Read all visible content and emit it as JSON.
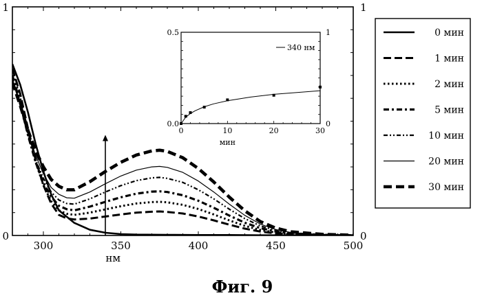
{
  "caption": "Фиг. 9",
  "chart_data": [
    {
      "type": "line",
      "title": "",
      "xlabel": "нм",
      "ylabel": "",
      "xlim": [
        280,
        500
      ],
      "ylim": [
        0,
        1
      ],
      "y2lim": [
        0,
        1
      ],
      "grid": false,
      "legend_position": "outside-right",
      "x_ticks": [
        300,
        350,
        400,
        450,
        500
      ],
      "y_ticks_left": [
        0,
        1
      ],
      "y_ticks_right": [
        0,
        1
      ],
      "x_tick_labels": [
        "300",
        "350",
        "400",
        "450",
        "500"
      ],
      "y_tick_labels_left": [
        "0",
        "1"
      ],
      "y_tick_labels_right": [
        "0",
        "1"
      ],
      "annotation": {
        "type": "arrow",
        "x": 340,
        "y_from": 0,
        "y_to": 0.44,
        "direction": "up"
      },
      "series": [
        {
          "name": "0 мин",
          "style": "solid-thick",
          "x": [
            280,
            285,
            290,
            295,
            300,
            305,
            310,
            320,
            330,
            340,
            350,
            360,
            380,
            400,
            420,
            440,
            460,
            480,
            500
          ],
          "y": [
            0.75,
            0.66,
            0.54,
            0.4,
            0.28,
            0.18,
            0.11,
            0.055,
            0.025,
            0.012,
            0.006,
            0.004,
            0.003,
            0.002,
            0.002,
            0.001,
            0.001,
            0.001,
            0.001
          ]
        },
        {
          "name": "1 мин",
          "style": "dash-thick",
          "x": [
            280,
            285,
            290,
            295,
            300,
            305,
            310,
            315,
            320,
            330,
            340,
            350,
            360,
            370,
            375,
            380,
            390,
            400,
            410,
            420,
            430,
            440,
            450,
            460,
            480,
            500
          ],
          "y": [
            0.73,
            0.62,
            0.47,
            0.33,
            0.22,
            0.14,
            0.09,
            0.075,
            0.07,
            0.074,
            0.083,
            0.092,
            0.1,
            0.104,
            0.105,
            0.103,
            0.096,
            0.083,
            0.066,
            0.047,
            0.03,
            0.017,
            0.009,
            0.005,
            0.002,
            0.001
          ]
        },
        {
          "name": "2 мин",
          "style": "dot-thick",
          "x": [
            280,
            285,
            290,
            295,
            300,
            305,
            310,
            315,
            320,
            330,
            340,
            350,
            360,
            370,
            375,
            380,
            390,
            400,
            410,
            420,
            430,
            440,
            450,
            460,
            480,
            500
          ],
          "y": [
            0.72,
            0.6,
            0.45,
            0.32,
            0.22,
            0.15,
            0.11,
            0.095,
            0.09,
            0.1,
            0.114,
            0.128,
            0.14,
            0.146,
            0.147,
            0.145,
            0.134,
            0.116,
            0.092,
            0.066,
            0.042,
            0.024,
            0.013,
            0.007,
            0.003,
            0.001
          ]
        },
        {
          "name": "5 мин",
          "style": "dashdot-thick",
          "x": [
            280,
            285,
            290,
            295,
            300,
            305,
            310,
            315,
            320,
            330,
            340,
            350,
            360,
            370,
            375,
            380,
            390,
            400,
            410,
            420,
            430,
            440,
            450,
            460,
            480,
            500
          ],
          "y": [
            0.7,
            0.58,
            0.44,
            0.32,
            0.23,
            0.17,
            0.13,
            0.115,
            0.11,
            0.126,
            0.147,
            0.167,
            0.183,
            0.192,
            0.193,
            0.19,
            0.176,
            0.152,
            0.121,
            0.087,
            0.056,
            0.032,
            0.017,
            0.009,
            0.003,
            0.001
          ]
        },
        {
          "name": "10 мин",
          "style": "dashdotdot",
          "x": [
            280,
            285,
            290,
            295,
            300,
            305,
            310,
            315,
            320,
            330,
            340,
            350,
            360,
            370,
            375,
            380,
            390,
            400,
            410,
            420,
            430,
            440,
            450,
            460,
            480,
            500
          ],
          "y": [
            0.69,
            0.57,
            0.44,
            0.33,
            0.25,
            0.19,
            0.155,
            0.14,
            0.137,
            0.16,
            0.19,
            0.218,
            0.24,
            0.252,
            0.254,
            0.25,
            0.232,
            0.2,
            0.16,
            0.115,
            0.074,
            0.042,
            0.022,
            0.011,
            0.004,
            0.001
          ]
        },
        {
          "name": "20 мин",
          "style": "solid-thin",
          "x": [
            280,
            285,
            290,
            295,
            300,
            305,
            310,
            315,
            320,
            330,
            340,
            350,
            360,
            370,
            375,
            380,
            390,
            400,
            410,
            420,
            430,
            440,
            450,
            460,
            480,
            500
          ],
          "y": [
            0.68,
            0.57,
            0.45,
            0.35,
            0.27,
            0.21,
            0.18,
            0.165,
            0.163,
            0.19,
            0.226,
            0.26,
            0.286,
            0.3,
            0.302,
            0.298,
            0.276,
            0.238,
            0.19,
            0.137,
            0.088,
            0.05,
            0.026,
            0.013,
            0.004,
            0.001
          ]
        },
        {
          "name": "30 мин",
          "style": "dash-heavy",
          "x": [
            280,
            285,
            290,
            295,
            300,
            305,
            310,
            315,
            320,
            330,
            340,
            350,
            360,
            370,
            375,
            380,
            390,
            400,
            410,
            420,
            430,
            440,
            450,
            460,
            480,
            500
          ],
          "y": [
            0.67,
            0.57,
            0.46,
            0.37,
            0.3,
            0.245,
            0.215,
            0.2,
            0.2,
            0.235,
            0.28,
            0.32,
            0.352,
            0.37,
            0.373,
            0.368,
            0.34,
            0.293,
            0.234,
            0.168,
            0.108,
            0.061,
            0.032,
            0.016,
            0.005,
            0.001
          ]
        }
      ]
    },
    {
      "type": "scatter",
      "title": "",
      "xlabel": "мин",
      "ylabel": "",
      "xlim": [
        0,
        30
      ],
      "ylim": [
        0,
        0.5
      ],
      "y2lim": [
        0,
        1
      ],
      "grid": false,
      "legend_position": "top-right",
      "x_ticks": [
        0,
        10,
        20,
        30
      ],
      "y_ticks_left": [
        0,
        0.5
      ],
      "y_ticks_right": [
        0,
        1
      ],
      "x_tick_labels": [
        "0",
        "10",
        "20",
        "30"
      ],
      "y_tick_labels_left": [
        "0.0",
        "0.5"
      ],
      "y_tick_labels_right": [
        "0",
        "1"
      ],
      "series": [
        {
          "name": "340 нм",
          "kind": "points",
          "x": [
            0,
            1,
            2,
            5,
            10,
            20,
            30
          ],
          "y": [
            0.0,
            0.04,
            0.06,
            0.09,
            0.13,
            0.155,
            0.2
          ]
        },
        {
          "name": "",
          "kind": "fit",
          "x": [
            0,
            1,
            2,
            3,
            5,
            7,
            10,
            15,
            20,
            25,
            30
          ],
          "y": [
            0.0,
            0.035,
            0.055,
            0.07,
            0.092,
            0.108,
            0.125,
            0.145,
            0.16,
            0.17,
            0.18
          ]
        }
      ]
    }
  ]
}
